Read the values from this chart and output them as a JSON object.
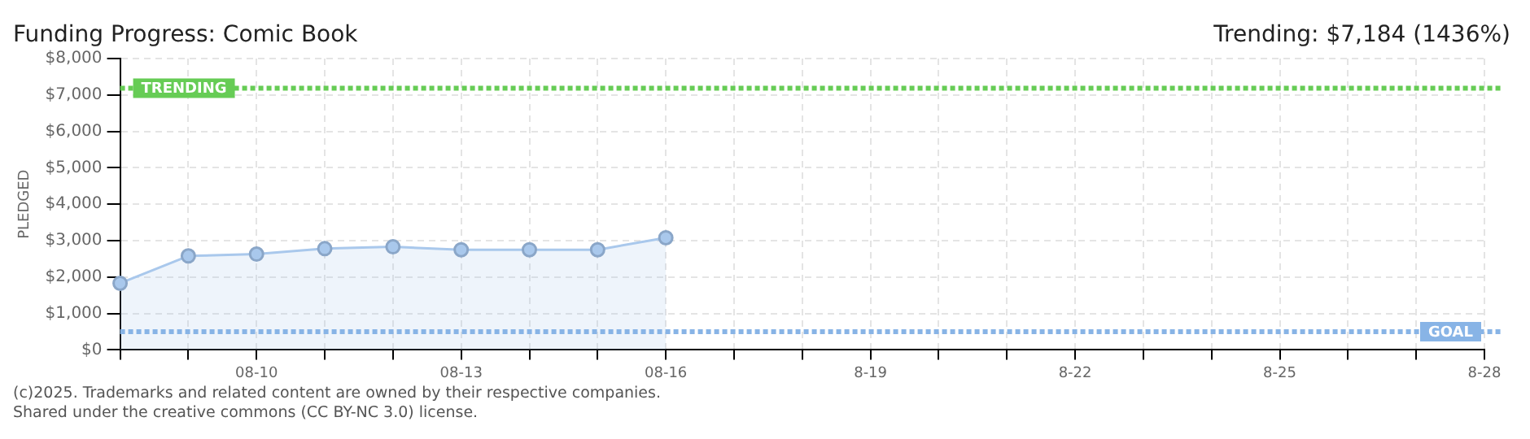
{
  "chart_data": {
    "type": "area",
    "title": "Funding Progress: Comic Book",
    "subtitle": "Trending: $7,184 (1436%)",
    "ylabel": "PLEDGED",
    "categories": [
      null,
      null,
      "08-10",
      null,
      null,
      "08-13",
      null,
      null,
      "08-16",
      null,
      null,
      "8-19",
      null,
      null,
      "8-22",
      null,
      null,
      "8-25",
      null,
      null,
      "8-28"
    ],
    "series": [
      {
        "color": "#a9c8ec",
        "values": [
          1830,
          2580,
          2630,
          2780,
          2830,
          2750,
          2750,
          2750,
          3080,
          null,
          null,
          null,
          null,
          null,
          null,
          null,
          null,
          null,
          null,
          null,
          null
        ]
      }
    ],
    "ylim": [
      0,
      8000
    ],
    "yticks": [
      {
        "value": 0,
        "label": "$0"
      },
      {
        "value": 1000,
        "label": "$1,000"
      },
      {
        "value": 2000,
        "label": "$2,000"
      },
      {
        "value": 3000,
        "label": "$3,000"
      },
      {
        "value": 4000,
        "label": "$4,000"
      },
      {
        "value": 5000,
        "label": "$5,000"
      },
      {
        "value": 6000,
        "label": "$6,000"
      },
      {
        "value": 7000,
        "label": "$7,000"
      },
      {
        "value": 8000,
        "label": "$8,000"
      }
    ],
    "ref_lines": [
      {
        "axis": "y",
        "value": 7184,
        "label": "TRENDING",
        "color": "#66cc55",
        "line_style": "dotted"
      },
      {
        "axis": "y",
        "value": 500,
        "label": "GOAL",
        "color": "#88b4e6",
        "line_style": "dotted"
      }
    ],
    "grid": true,
    "marker": "circle",
    "legend": false,
    "annotations": [
      "(c)2025. Trademarks and related content are owned by their respective companies.",
      "Shared under the creative commons (CC BY-NC 3.0) license."
    ]
  }
}
